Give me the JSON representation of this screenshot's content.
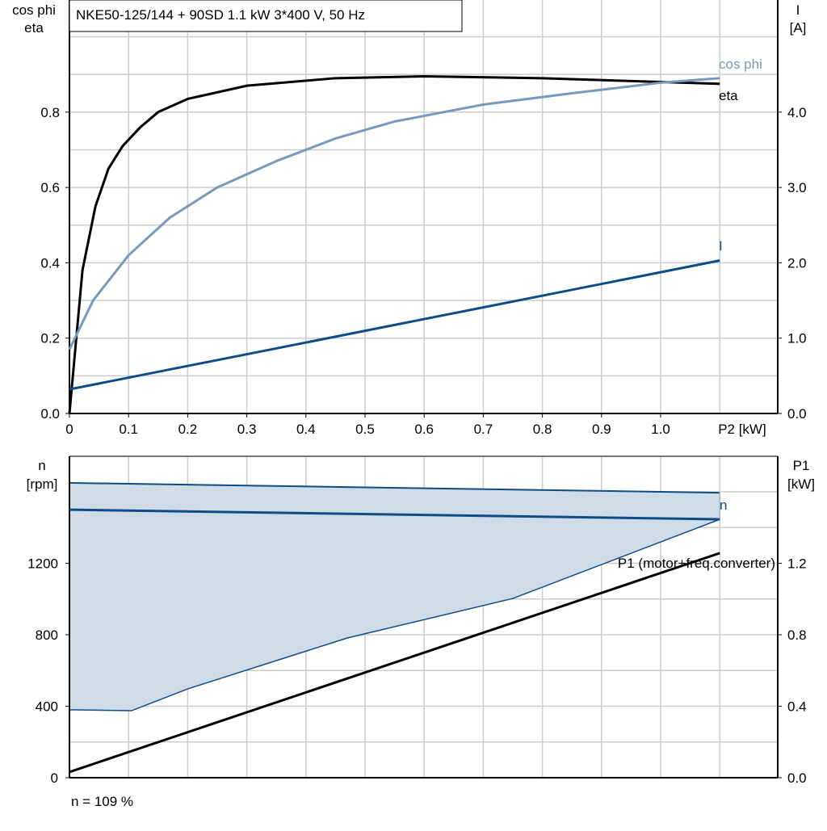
{
  "chart_data": [
    {
      "type": "line",
      "title": "NKE50-125/144 + 90SD   1.1 kW   3*400 V, 50 Hz",
      "xlabel": "P2 [kW]",
      "ylabel_left": [
        "cos phi",
        "eta"
      ],
      "ylabel_right": [
        "I",
        "[A]"
      ],
      "xlim": [
        0,
        1.1
      ],
      "ylim_left": [
        0,
        1.1
      ],
      "ylim_right": [
        0,
        5.5
      ],
      "x_ticks": [
        "0",
        "0.1",
        "0.2",
        "0.3",
        "0.4",
        "0.5",
        "0.6",
        "0.7",
        "0.8",
        "0.9",
        "1.0"
      ],
      "y_ticks_left": [
        "0.0",
        "0.2",
        "0.4",
        "0.6",
        "0.8"
      ],
      "y_ticks_right": [
        "0.0",
        "1.0",
        "2.0",
        "3.0",
        "4.0"
      ],
      "grid": true,
      "series": [
        {
          "name": "eta",
          "axis": "left",
          "color": "#000000",
          "x": [
            0,
            0.022,
            0.044,
            0.066,
            0.09,
            0.12,
            0.15,
            0.2,
            0.3,
            0.45,
            0.6,
            0.8,
            1.0,
            1.1
          ],
          "y": [
            0,
            0.38,
            0.55,
            0.65,
            0.71,
            0.76,
            0.8,
            0.835,
            0.87,
            0.89,
            0.895,
            0.89,
            0.88,
            0.875
          ]
        },
        {
          "name": "cos phi",
          "axis": "left",
          "color": "#7799bb",
          "x": [
            0,
            0.04,
            0.1,
            0.17,
            0.25,
            0.35,
            0.45,
            0.55,
            0.7,
            0.85,
            1.0,
            1.1
          ],
          "y": [
            0.17,
            0.3,
            0.42,
            0.52,
            0.6,
            0.67,
            0.73,
            0.775,
            0.82,
            0.85,
            0.878,
            0.89
          ]
        },
        {
          "name": "I",
          "axis": "right",
          "color": "#0e4c86",
          "x": [
            0,
            1.1
          ],
          "y": [
            0.32,
            2.03
          ]
        }
      ]
    },
    {
      "type": "line",
      "ylabel_left": [
        "n",
        "[rpm]"
      ],
      "ylabel_right": [
        "P1",
        "[kW]"
      ],
      "xlim": [
        0,
        1.1
      ],
      "ylim_left": [
        0,
        1800
      ],
      "ylim_right": [
        0,
        1.8
      ],
      "y_ticks_left": [
        "0",
        "400",
        "800",
        "1200"
      ],
      "y_ticks_right": [
        "0.0",
        "0.4",
        "0.8",
        "1.2"
      ],
      "grid": true,
      "operating_range": {
        "color": "#cfdbe7",
        "upper": {
          "x": [
            0,
            1.1
          ],
          "y": [
            1650,
            1595
          ]
        },
        "lower": {
          "x": [
            0,
            0.105,
            0.2,
            0.47,
            0.75,
            1.1
          ],
          "y": [
            380,
            375,
            497,
            782,
            1003,
            1446
          ]
        }
      },
      "series": [
        {
          "name": "n",
          "axis": "left",
          "color": "#0e4c86",
          "x": [
            0,
            1.1
          ],
          "y": [
            1500,
            1446
          ]
        },
        {
          "name": "P1 (motor+freq.converter)",
          "axis": "right",
          "color": "#000000",
          "x": [
            0,
            1.1
          ],
          "y": [
            0.032,
            1.257
          ]
        }
      ],
      "footnote": "n = 109 %"
    }
  ]
}
